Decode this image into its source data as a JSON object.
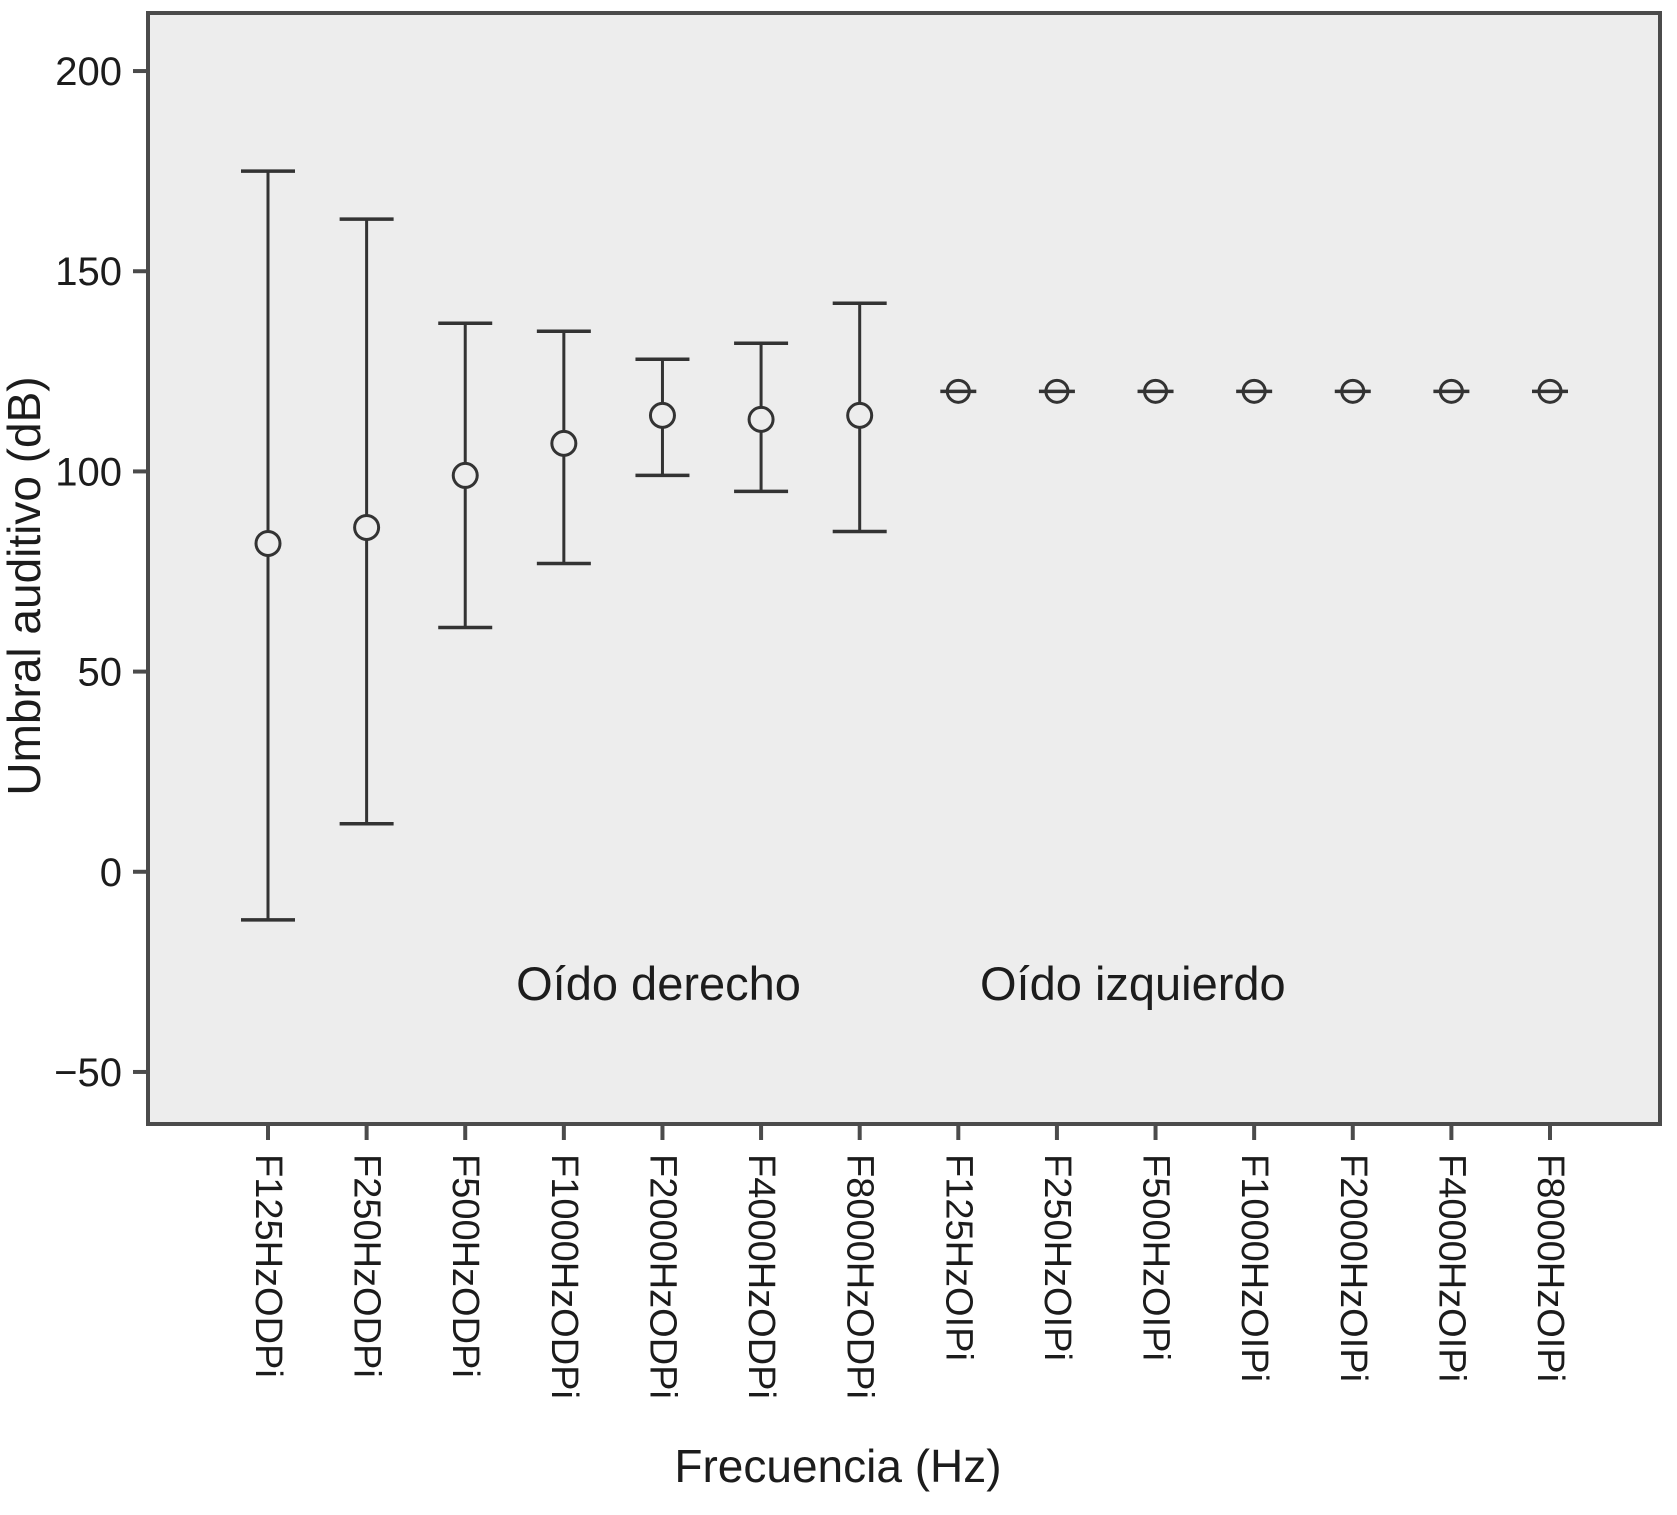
{
  "figure": {
    "background_color": "#ffffff"
  },
  "chart_data": {
    "type": "errorbar",
    "title": "",
    "xlabel": "Frecuencia (Hz)",
    "ylabel": "Umbral auditivo (dB)",
    "plot_bg_color": "#ededed",
    "axis_color": "#4b4b4b",
    "marker_color": "#333333",
    "text_color": "#1c1c1c",
    "grid": false,
    "legend_position": "none",
    "ylim": [
      -63,
      214.5
    ],
    "yticks": [
      200,
      150,
      100,
      50,
      0,
      -50
    ],
    "ytick_labels": [
      "200",
      "150",
      "100",
      "50",
      "0",
      "−50"
    ],
    "categories": [
      "F125HzODPi",
      "F250HzODPi",
      "F500HzODPi",
      "F1000HzODPi",
      "F2000HzODPi",
      "F4000HzODPi",
      "F8000HzODPi",
      "F125HzOIPi",
      "F250HzOIPi",
      "F500HzOIPi",
      "F1000HzOIPi",
      "F2000HzOIPi",
      "F4000HzOIPi",
      "F8000HzOIPi"
    ],
    "points": [
      {
        "category": "F125HzODPi",
        "mean": 82,
        "ci_low": -12,
        "ci_high": 175
      },
      {
        "category": "F250HzODPi",
        "mean": 86,
        "ci_low": 12,
        "ci_high": 163
      },
      {
        "category": "F500HzODPi",
        "mean": 99,
        "ci_low": 61,
        "ci_high": 137
      },
      {
        "category": "F1000HzODPi",
        "mean": 107,
        "ci_low": 77,
        "ci_high": 135
      },
      {
        "category": "F2000HzODPi",
        "mean": 114,
        "ci_low": 99,
        "ci_high": 128
      },
      {
        "category": "F4000HzODPi",
        "mean": 113,
        "ci_low": 95,
        "ci_high": 132
      },
      {
        "category": "F8000HzODPi",
        "mean": 114,
        "ci_low": 85,
        "ci_high": 142
      },
      {
        "category": "F125HzOIPi",
        "mean": 120,
        "ci_low": 120,
        "ci_high": 120
      },
      {
        "category": "F250HzOIPi",
        "mean": 120,
        "ci_low": 120,
        "ci_high": 120
      },
      {
        "category": "F500HzOIPi",
        "mean": 120,
        "ci_low": 120,
        "ci_high": 120
      },
      {
        "category": "F1000HzOIPi",
        "mean": 120,
        "ci_low": 120,
        "ci_high": 120
      },
      {
        "category": "F2000HzOIPi",
        "mean": 120,
        "ci_low": 120,
        "ci_high": 120
      },
      {
        "category": "F4000HzOIPi",
        "mean": 120,
        "ci_low": 120,
        "ci_high": 120
      },
      {
        "category": "F8000HzOIPi",
        "mean": 120,
        "ci_low": 120,
        "ci_high": 120
      }
    ],
    "annotations": [
      {
        "text": "Oído derecho",
        "x_index": 3.96,
        "y": -32
      },
      {
        "text": "Oído izquierdo",
        "x_index": 8.77,
        "y": -32
      }
    ]
  }
}
